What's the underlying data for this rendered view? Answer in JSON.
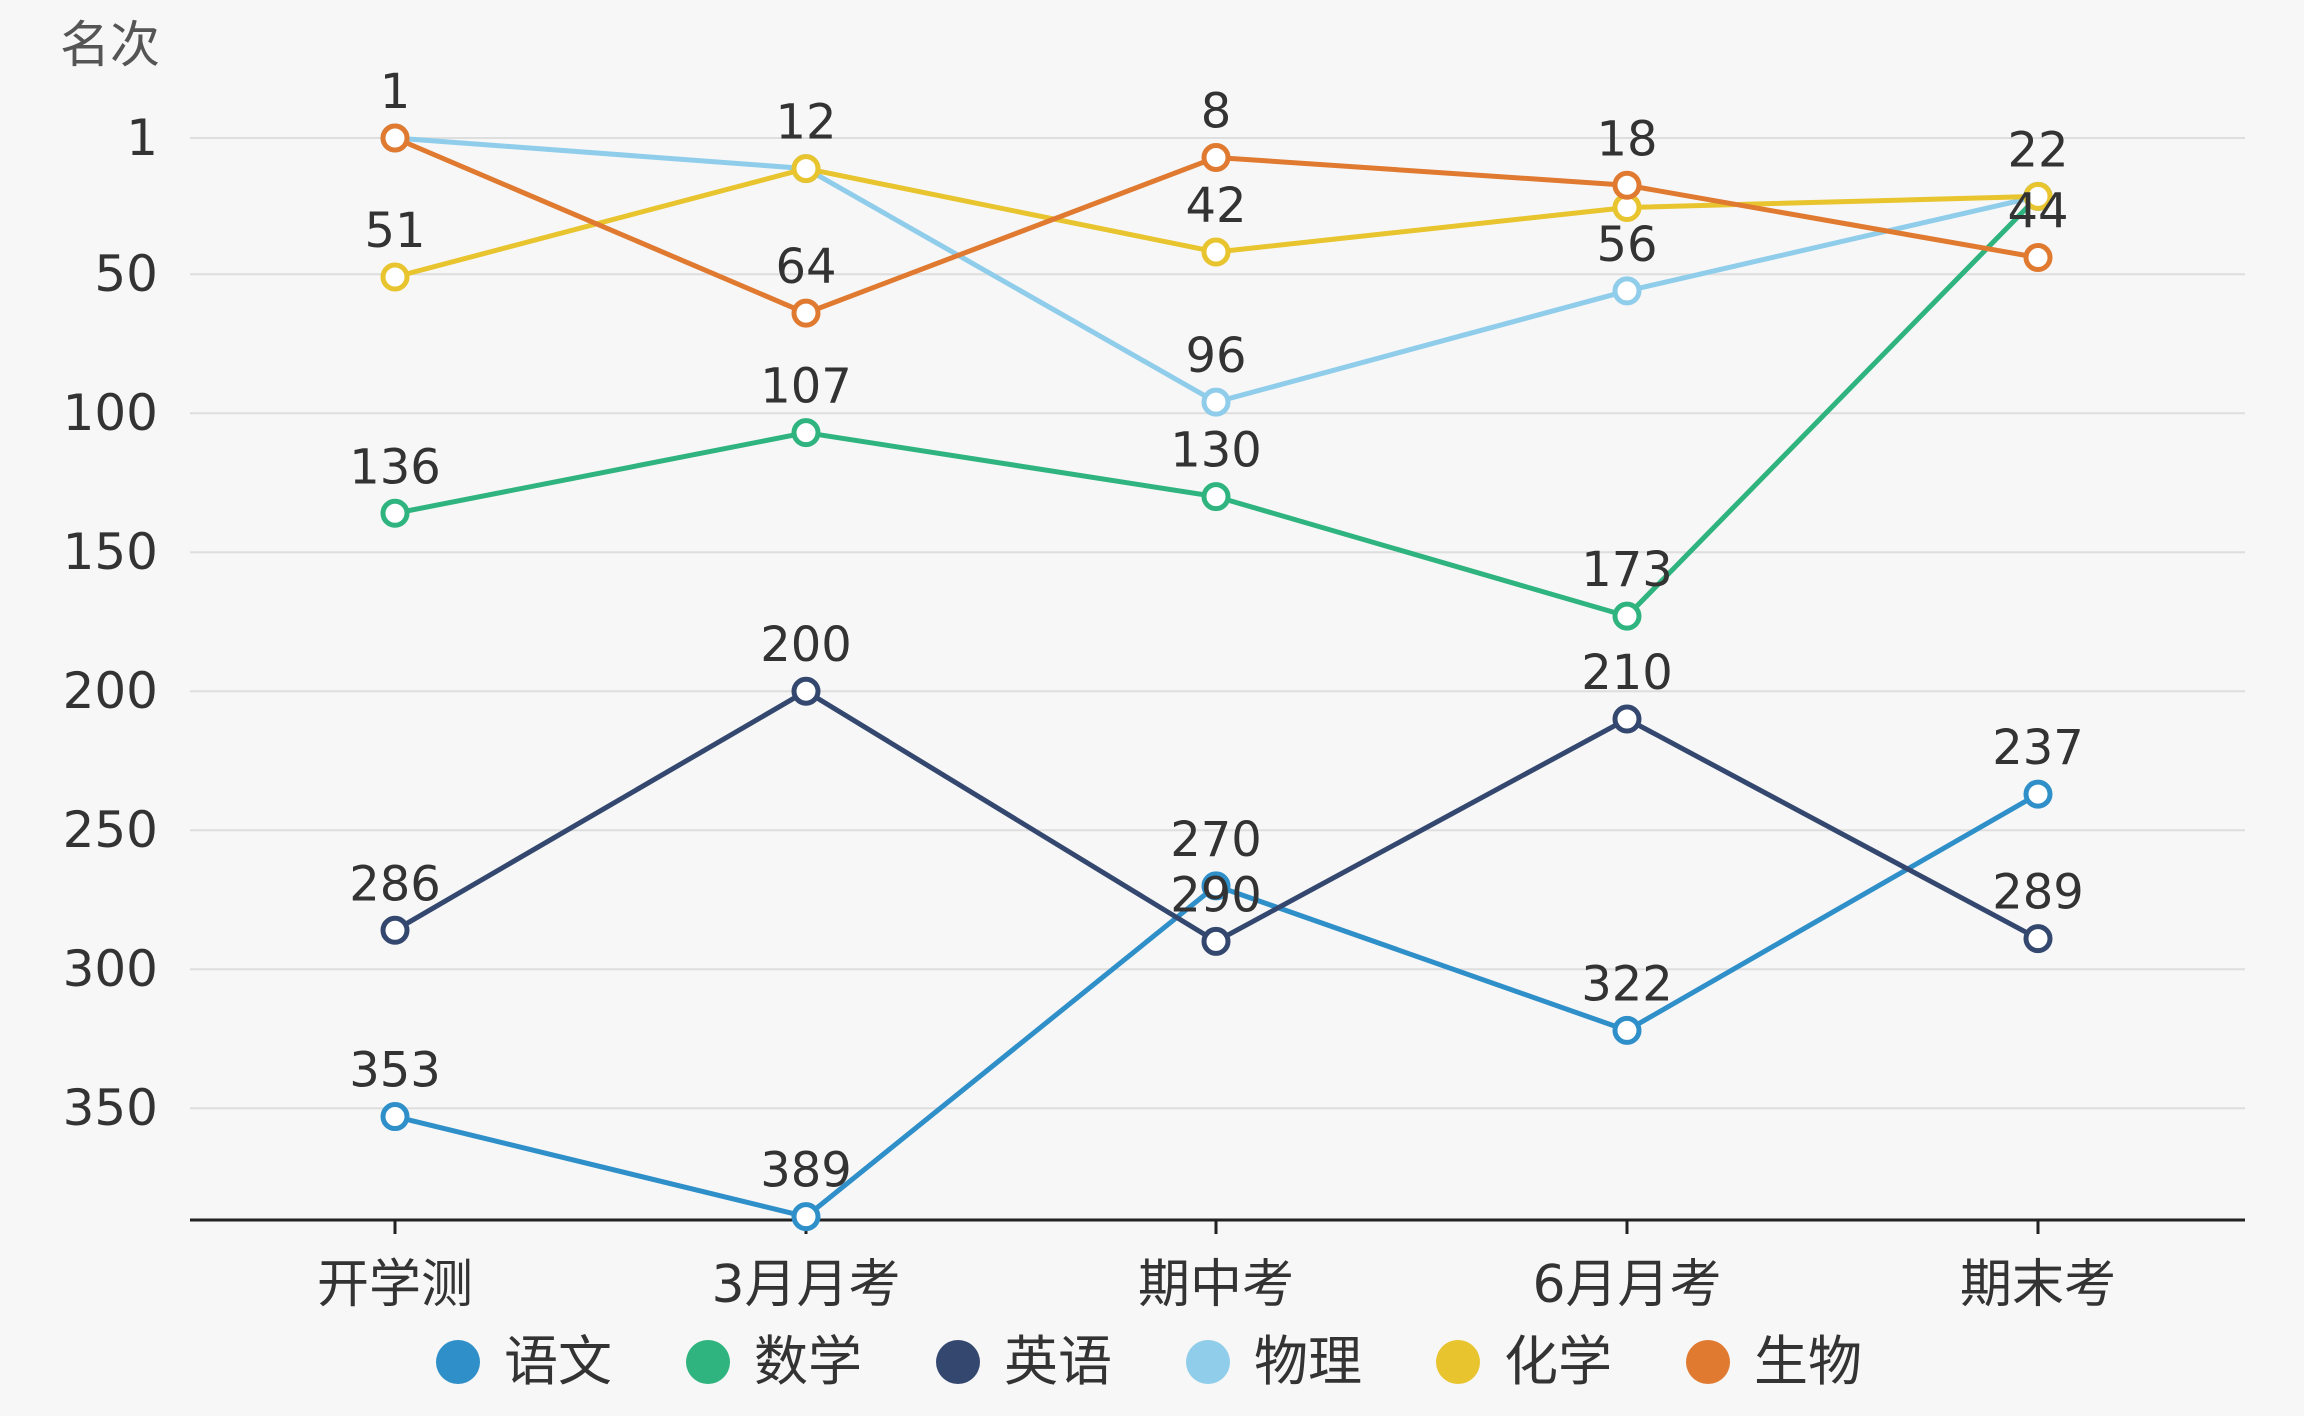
{
  "chart_data": {
    "type": "line",
    "ylabel": "名次",
    "y_inverted": true,
    "ylim": [
      1,
      389
    ],
    "yticks": [
      1,
      50,
      100,
      150,
      200,
      250,
      300,
      350
    ],
    "categories": [
      "开学测",
      "3月月考",
      "期中考",
      "6月月考",
      "期末考"
    ],
    "grid": true,
    "legend_position": "bottom",
    "series": [
      {
        "name": "语文",
        "color": "#2f8fc9",
        "values": [
          353,
          389,
          270,
          322,
          237
        ]
      },
      {
        "name": "数学",
        "color": "#2fb47f",
        "values": [
          136,
          107,
          130,
          173,
          22
        ]
      },
      {
        "name": "英语",
        "color": "#34486f",
        "values": [
          286,
          200,
          290,
          210,
          289
        ]
      },
      {
        "name": "物理",
        "color": "#8fcdeb",
        "values": [
          1,
          12,
          96,
          56,
          22
        ]
      },
      {
        "name": "化学",
        "color": "#e8c42e",
        "values": [
          51,
          12,
          42,
          26,
          22
        ]
      },
      {
        "name": "生物",
        "color": "#e07a30",
        "values": [
          1,
          64,
          8,
          18,
          44
        ]
      }
    ],
    "data_labels": [
      {
        "text": "1",
        "x": "开学测",
        "y": 1
      },
      {
        "text": "51",
        "x": "开学测",
        "y": 51
      },
      {
        "text": "136",
        "x": "开学测",
        "y": 136
      },
      {
        "text": "286",
        "x": "开学测",
        "y": 286
      },
      {
        "text": "353",
        "x": "开学测",
        "y": 353
      },
      {
        "text": "12",
        "x": "3月月考",
        "y": 12
      },
      {
        "text": "64",
        "x": "3月月考",
        "y": 64
      },
      {
        "text": "107",
        "x": "3月月考",
        "y": 107
      },
      {
        "text": "200",
        "x": "3月月考",
        "y": 200
      },
      {
        "text": "389",
        "x": "3月月考",
        "y": 389
      },
      {
        "text": "8",
        "x": "期中考",
        "y": 8
      },
      {
        "text": "42",
        "x": "期中考",
        "y": 42
      },
      {
        "text": "96",
        "x": "期中考",
        "y": 96
      },
      {
        "text": "130",
        "x": "期中考",
        "y": 130
      },
      {
        "text": "270",
        "x": "期中考",
        "y": 270
      },
      {
        "text": "290",
        "x": "期中考",
        "y": 290
      },
      {
        "text": "18",
        "x": "6月月考",
        "y": 18
      },
      {
        "text": "56",
        "x": "6月月考",
        "y": 56
      },
      {
        "text": "173",
        "x": "6月月考",
        "y": 173
      },
      {
        "text": "210",
        "x": "6月月考",
        "y": 210
      },
      {
        "text": "322",
        "x": "6月月考",
        "y": 322
      },
      {
        "text": "22",
        "x": "期末考",
        "y": 22
      },
      {
        "text": "44",
        "x": "期末考",
        "y": 44
      },
      {
        "text": "237",
        "x": "期末考",
        "y": 237
      },
      {
        "text": "289",
        "x": "期末考",
        "y": 289
      }
    ]
  }
}
